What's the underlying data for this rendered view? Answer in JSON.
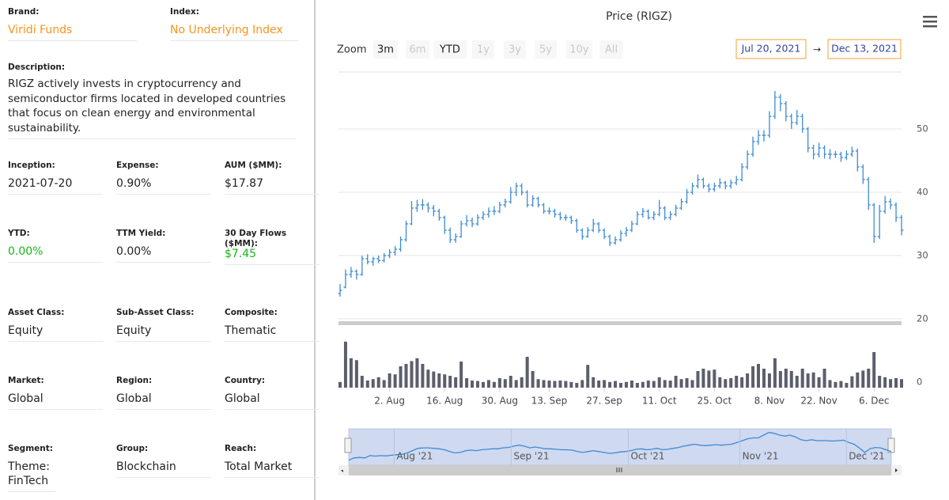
{
  "fund": {
    "rows": [
      [
        {
          "label": "Brand:",
          "value": "Viridi Funds",
          "color": "#f7941d"
        },
        {
          "label": "Index:",
          "value": "No Underlying Index",
          "color": "#f7941d"
        }
      ],
      [
        {
          "label": "Inception:",
          "value": "2021-07-20"
        },
        {
          "label": "Expense:",
          "value": "0.90%"
        },
        {
          "label": "AUM ($MM):",
          "value": "$17.87"
        }
      ],
      [
        {
          "label": "YTD:",
          "value": "0.00%",
          "color": "#19b419"
        },
        {
          "label": "TTM Yield:",
          "value": "0.00%"
        },
        {
          "label": "30 Day Flows ($MM):",
          "value": "$7.45",
          "color": "#19b419"
        }
      ],
      [
        {
          "label": "Asset Class:",
          "value": "Equity"
        },
        {
          "label": "Sub-Asset Class:",
          "value": "Equity"
        },
        {
          "label": "Composite:",
          "value": "Thematic"
        }
      ],
      [
        {
          "label": "Market:",
          "value": "Global"
        },
        {
          "label": "Region:",
          "value": "Global"
        },
        {
          "label": "Country:",
          "value": "Global"
        }
      ],
      [
        {
          "label": "Segment:",
          "value": "Theme: FinTech"
        },
        {
          "label": "Group:",
          "value": "Blockchain"
        },
        {
          "label": "Reach:",
          "value": "Total Market"
        }
      ]
    ],
    "description": {
      "label": "Description:",
      "text": "RIGZ actively invests in cryptocurrency and semiconductor firms located in developed countries that focus on clean energy and environmental sustainability."
    }
  },
  "chart_data": {
    "type": "ohlc",
    "title": "Price (RIGZ)",
    "zoom": {
      "label": "Zoom",
      "buttons": [
        {
          "label": "3m",
          "active": true
        },
        {
          "label": "6m",
          "active": false
        },
        {
          "label": "YTD",
          "active": true
        },
        {
          "label": "1y",
          "active": false
        },
        {
          "label": "3y",
          "active": false
        },
        {
          "label": "5y",
          "active": false
        },
        {
          "label": "10y",
          "active": false
        },
        {
          "label": "All",
          "active": false
        }
      ]
    },
    "range": {
      "from": "Jul 20, 2021",
      "separator": "→",
      "to": "Dec 13, 2021"
    },
    "xlim": [
      0,
      102
    ],
    "xticks": [
      {
        "value": 9,
        "label": "2. Aug"
      },
      {
        "value": 19,
        "label": "16. Aug"
      },
      {
        "value": 29,
        "label": "30. Aug"
      },
      {
        "value": 38,
        "label": "13. Sep"
      },
      {
        "value": 48,
        "label": "27. Sep"
      },
      {
        "value": 58,
        "label": "11. Oct"
      },
      {
        "value": 68,
        "label": "25. Oct"
      },
      {
        "value": 78,
        "label": "8. Nov"
      },
      {
        "value": 87,
        "label": "22. Nov"
      },
      {
        "value": 97,
        "label": "6. Dec"
      }
    ],
    "ylim": [
      19,
      59
    ],
    "yticks": [
      20,
      30,
      40,
      50
    ],
    "grid": true,
    "series": [
      {
        "color": "#3d8bd4",
        "values": [
          [
            24,
            25.5,
            23.5,
            24.5
          ],
          [
            25,
            27.8,
            24.8,
            27
          ],
          [
            27,
            28.2,
            26.5,
            27.5
          ],
          [
            27.5,
            27.8,
            26.2,
            27
          ],
          [
            27,
            30,
            26.8,
            29.5
          ],
          [
            29.5,
            30.2,
            28.6,
            29
          ],
          [
            29,
            29.8,
            28.4,
            29.5
          ],
          [
            29.5,
            30,
            28.8,
            29.2
          ],
          [
            29.2,
            30.4,
            28.9,
            30
          ],
          [
            30,
            31,
            29.6,
            30.5
          ],
          [
            30.5,
            31.5,
            30,
            31
          ],
          [
            31,
            33,
            30.6,
            32.5
          ],
          [
            32.5,
            35.5,
            32.2,
            35
          ],
          [
            35,
            38.6,
            34.8,
            37.5
          ],
          [
            37.5,
            38.8,
            36.9,
            38
          ],
          [
            38,
            38.9,
            37.2,
            38
          ],
          [
            38,
            38.4,
            36.8,
            37.5
          ],
          [
            37.5,
            38,
            36.2,
            37
          ],
          [
            37,
            37.4,
            35.5,
            36
          ],
          [
            36,
            36.3,
            33.4,
            34
          ],
          [
            34,
            34.4,
            32,
            32.5
          ],
          [
            32.5,
            33.5,
            32,
            33
          ],
          [
            33,
            35.5,
            32.8,
            35
          ],
          [
            35,
            36.4,
            34.6,
            35.5
          ],
          [
            35.5,
            36,
            34.5,
            35
          ],
          [
            35,
            36.5,
            34.7,
            36
          ],
          [
            36,
            37,
            35.6,
            36.5
          ],
          [
            36.5,
            37.6,
            36,
            37
          ],
          [
            37,
            37.8,
            36.4,
            37
          ],
          [
            37,
            38.5,
            36.7,
            38
          ],
          [
            38,
            39,
            37.6,
            38.5
          ],
          [
            38.5,
            40.8,
            38.2,
            40
          ],
          [
            40,
            41.5,
            39.4,
            41
          ],
          [
            41,
            41.4,
            39.5,
            40
          ],
          [
            40,
            40.3,
            37.6,
            38
          ],
          [
            38,
            39.5,
            37.7,
            39
          ],
          [
            39,
            39.3,
            37.6,
            38
          ],
          [
            38,
            38.3,
            36.6,
            37
          ],
          [
            37,
            37.6,
            36.5,
            37
          ],
          [
            37,
            37.4,
            36,
            36.5
          ],
          [
            36.5,
            36.9,
            35.6,
            36
          ],
          [
            36,
            36.5,
            35.5,
            36
          ],
          [
            36,
            36.3,
            35,
            35.5
          ],
          [
            35.5,
            35.8,
            33.6,
            34
          ],
          [
            34,
            34.3,
            32.5,
            33
          ],
          [
            33,
            34.5,
            32.8,
            34
          ],
          [
            34,
            35.8,
            33.7,
            35
          ],
          [
            35,
            35.3,
            33.6,
            34
          ],
          [
            34,
            34.3,
            32.6,
            33
          ],
          [
            33,
            33.3,
            31.5,
            32
          ],
          [
            32,
            33,
            31.7,
            32.5
          ],
          [
            32.5,
            34,
            32.2,
            33.5
          ],
          [
            33.5,
            34.5,
            33,
            34
          ],
          [
            34,
            35.5,
            33.7,
            35
          ],
          [
            35,
            37,
            34.8,
            36.5
          ],
          [
            36.5,
            37.5,
            36,
            37
          ],
          [
            37,
            37.3,
            35.7,
            36
          ],
          [
            36,
            37,
            35.6,
            36.5
          ],
          [
            36.5,
            38.8,
            36.2,
            37.5
          ],
          [
            37.5,
            37.8,
            35.6,
            36
          ],
          [
            36,
            37,
            35.6,
            36.5
          ],
          [
            36.5,
            38,
            36.2,
            37.5
          ],
          [
            37.5,
            39,
            37.2,
            38.5
          ],
          [
            38.5,
            40.5,
            38.2,
            40
          ],
          [
            40,
            41.5,
            39.6,
            41
          ],
          [
            41,
            42.8,
            40.6,
            42
          ],
          [
            42,
            42.3,
            40.6,
            41
          ],
          [
            41,
            41.4,
            40,
            40.5
          ],
          [
            40.5,
            41.5,
            40.1,
            41
          ],
          [
            41,
            42.2,
            40.6,
            41.5
          ],
          [
            41.5,
            41.8,
            40.5,
            41
          ],
          [
            41,
            42,
            40.6,
            41.5
          ],
          [
            41.5,
            42.6,
            41.1,
            42
          ],
          [
            42,
            44.6,
            41.7,
            44
          ],
          [
            44,
            46.6,
            43.6,
            46
          ],
          [
            46,
            48.8,
            45.6,
            48
          ],
          [
            48,
            49.8,
            47.5,
            49
          ],
          [
            49,
            49.8,
            48,
            49
          ],
          [
            49,
            52.8,
            48.6,
            52
          ],
          [
            52,
            56,
            51.6,
            55
          ],
          [
            55,
            55.5,
            52.8,
            54
          ],
          [
            54,
            54.4,
            51.2,
            52
          ],
          [
            52,
            52.4,
            50,
            51
          ],
          [
            51,
            53,
            50.6,
            52
          ],
          [
            52,
            52.4,
            49.4,
            50
          ],
          [
            50,
            50.3,
            46.3,
            47
          ],
          [
            47,
            47.5,
            45.2,
            46
          ],
          [
            46,
            47.8,
            45.5,
            47
          ],
          [
            47,
            47.4,
            45.3,
            46
          ],
          [
            46,
            46.8,
            45.2,
            46
          ],
          [
            46,
            46.5,
            45.4,
            46
          ],
          [
            46,
            46.4,
            44.8,
            45.5
          ],
          [
            45.5,
            46.6,
            45.1,
            46
          ],
          [
            46,
            47.2,
            45.6,
            46.5
          ],
          [
            46.5,
            46.9,
            43.3,
            44
          ],
          [
            44,
            44.4,
            41.3,
            42
          ],
          [
            42,
            42.4,
            37.2,
            38
          ],
          [
            38,
            38.3,
            32,
            33
          ],
          [
            33,
            38,
            32.6,
            37
          ],
          [
            37,
            39.4,
            36.6,
            38.5
          ],
          [
            38.5,
            39,
            37.3,
            38
          ],
          [
            38,
            38.4,
            35.3,
            36
          ],
          [
            36,
            36.4,
            33.2,
            34
          ]
        ]
      }
    ],
    "volume": {
      "color": "#5b5e6b",
      "ylim": [
        0,
        10
      ],
      "yticks": [
        0
      ],
      "values": [
        1.2,
        9.7,
        6.2,
        5.8,
        2.5,
        1.5,
        1.8,
        2.2,
        1.6,
        3.0,
        2.8,
        4.5,
        5.0,
        5.6,
        6.2,
        5.0,
        3.8,
        3.4,
        3.0,
        2.8,
        2.5,
        2.2,
        5.5,
        2.0,
        1.5,
        1.4,
        1.2,
        1.6,
        1.2,
        2.0,
        1.8,
        2.5,
        1.6,
        2.2,
        6.5,
        3.5,
        1.8,
        1.6,
        1.5,
        1.4,
        1.5,
        1.4,
        1.2,
        1.0,
        1.6,
        4.8,
        2.2,
        1.5,
        1.6,
        1.2,
        1.4,
        1.0,
        1.2,
        1.5,
        1.0,
        1.2,
        1.5,
        1.4,
        2.2,
        1.6,
        1.5,
        2.5,
        1.8,
        2.0,
        1.6,
        3.5,
        4.0,
        3.6,
        3.8,
        2.2,
        1.8,
        2.0,
        2.5,
        2.2,
        3.0,
        4.5,
        5.0,
        4.0,
        3.0,
        6.2,
        3.5,
        4.0,
        3.5,
        2.5,
        4.0,
        3.0,
        3.2,
        2.2,
        4.0,
        1.6,
        1.2,
        1.4,
        1.0,
        2.4,
        3.2,
        3.6,
        4.0,
        7.5,
        2.5,
        2.2,
        1.8,
        2.0,
        1.8
      ]
    },
    "navigator": {
      "xticks": [
        {
          "value": 9,
          "label": "Aug '21"
        },
        {
          "value": 31,
          "label": "Sep '21"
        },
        {
          "value": 53,
          "label": "Oct '21"
        },
        {
          "value": 74,
          "label": "Nov '21"
        },
        {
          "value": 94,
          "label": "Dec '21"
        }
      ]
    }
  }
}
